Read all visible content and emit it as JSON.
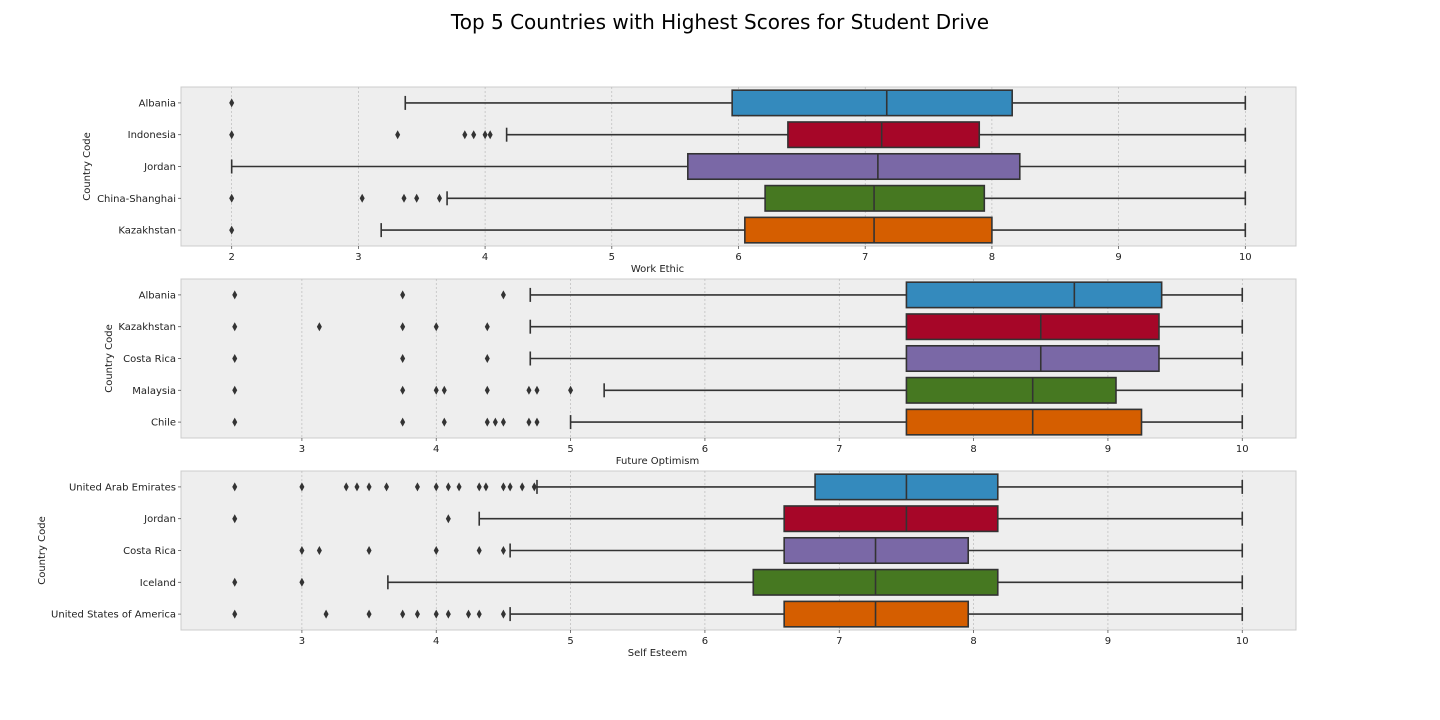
{
  "chart_data": {
    "type": "box",
    "title": "Top 5 Countries with Highest Scores for Student Drive",
    "palette": [
      "#348abd",
      "#a60628",
      "#7a68a6",
      "#467821",
      "#d55e00"
    ],
    "panels": [
      {
        "xlabel": "Work Ethic",
        "ylabel": "Country Code",
        "xlim": [
          1.6,
          10.4
        ],
        "xticks": [
          "2",
          "3",
          "4",
          "5",
          "6",
          "7",
          "8",
          "9",
          "10"
        ],
        "boxes": [
          {
            "label": "Albania",
            "whislo": 3.37,
            "q1": 5.95,
            "med": 7.17,
            "q3": 8.16,
            "whishi": 10,
            "fliers": [
              2.0
            ]
          },
          {
            "label": "Indonesia",
            "whislo": 4.17,
            "q1": 6.39,
            "med": 7.13,
            "q3": 7.9,
            "whishi": 10,
            "fliers": [
              2.0,
              3.31,
              3.84,
              3.91,
              4.0,
              4.04
            ]
          },
          {
            "label": "Jordan",
            "whislo": 2.0,
            "q1": 5.6,
            "med": 7.1,
            "q3": 8.22,
            "whishi": 10,
            "fliers": []
          },
          {
            "label": "China-Shanghai",
            "whislo": 3.7,
            "q1": 6.21,
            "med": 7.07,
            "q3": 7.94,
            "whishi": 10,
            "fliers": [
              2.0,
              3.03,
              3.36,
              3.46,
              3.64
            ]
          },
          {
            "label": "Kazakhstan",
            "whislo": 3.18,
            "q1": 6.05,
            "med": 7.07,
            "q3": 8.0,
            "whishi": 10,
            "fliers": [
              2.0
            ]
          }
        ]
      },
      {
        "xlabel": "Future Optimism",
        "ylabel": "Country Code",
        "xlim": [
          2.1,
          10.4
        ],
        "xticks": [
          "3",
          "4",
          "5",
          "6",
          "7",
          "8",
          "9",
          "10"
        ],
        "boxes": [
          {
            "label": "Albania",
            "whislo": 4.7,
            "q1": 7.5,
            "med": 8.75,
            "q3": 9.4,
            "whishi": 10,
            "fliers": [
              2.5,
              3.75,
              4.5
            ]
          },
          {
            "label": "Kazakhstan",
            "whislo": 4.7,
            "q1": 7.5,
            "med": 8.5,
            "q3": 9.38,
            "whishi": 10,
            "fliers": [
              2.5,
              3.13,
              3.75,
              4.0,
              4.38
            ]
          },
          {
            "label": "Costa Rica",
            "whislo": 4.7,
            "q1": 7.5,
            "med": 8.5,
            "q3": 9.38,
            "whishi": 10,
            "fliers": [
              2.5,
              3.75,
              4.38
            ]
          },
          {
            "label": "Malaysia",
            "whislo": 5.25,
            "q1": 7.5,
            "med": 8.44,
            "q3": 9.06,
            "whishi": 10,
            "fliers": [
              2.5,
              3.75,
              4.0,
              4.06,
              4.38,
              4.69,
              4.75,
              5.0
            ]
          },
          {
            "label": "Chile",
            "whislo": 5.0,
            "q1": 7.5,
            "med": 8.44,
            "q3": 9.25,
            "whishi": 10,
            "fliers": [
              2.5,
              3.75,
              4.06,
              4.38,
              4.44,
              4.5,
              4.69,
              4.75
            ]
          }
        ]
      },
      {
        "xlabel": "Self Esteem",
        "ylabel": "Country Code",
        "xlim": [
          2.1,
          10.4
        ],
        "xticks": [
          "3",
          "4",
          "5",
          "6",
          "7",
          "8",
          "9",
          "10"
        ],
        "boxes": [
          {
            "label": "United Arab Emirates",
            "whislo": 4.75,
            "q1": 6.82,
            "med": 7.5,
            "q3": 8.18,
            "whishi": 10,
            "fliers": [
              2.5,
              3.0,
              3.33,
              3.41,
              3.5,
              3.63,
              3.86,
              4.0,
              4.09,
              4.17,
              4.32,
              4.37,
              4.5,
              4.55,
              4.64,
              4.73
            ]
          },
          {
            "label": "Jordan",
            "whislo": 4.32,
            "q1": 6.59,
            "med": 7.5,
            "q3": 8.18,
            "whishi": 10,
            "fliers": [
              2.5,
              4.09
            ]
          },
          {
            "label": "Costa Rica",
            "whislo": 4.55,
            "q1": 6.59,
            "med": 7.27,
            "q3": 7.96,
            "whishi": 10,
            "fliers": [
              3.0,
              3.13,
              3.5,
              4.0,
              4.32,
              4.5
            ]
          },
          {
            "label": "Iceland",
            "whislo": 3.64,
            "q1": 6.36,
            "med": 7.27,
            "q3": 8.18,
            "whishi": 10,
            "fliers": [
              2.5,
              3.0
            ]
          },
          {
            "label": "United States of America",
            "whislo": 4.55,
            "q1": 6.59,
            "med": 7.27,
            "q3": 7.96,
            "whishi": 10,
            "fliers": [
              2.5,
              3.18,
              3.5,
              3.75,
              3.86,
              4.0,
              4.09,
              4.24,
              4.32,
              4.5
            ]
          }
        ]
      }
    ]
  }
}
